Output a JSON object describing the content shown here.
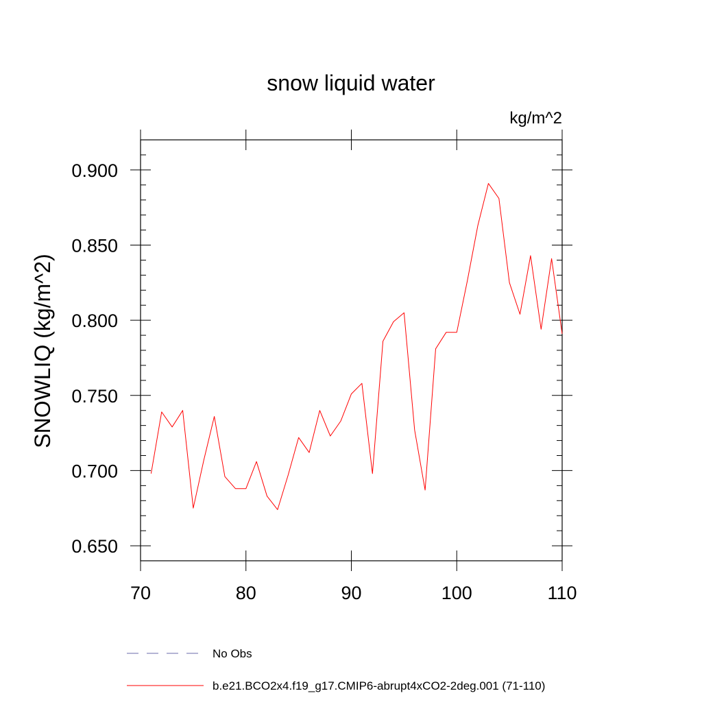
{
  "chart_data": {
    "type": "line",
    "title": "snow liquid water",
    "units_label": "kg/m^2",
    "xlabel": "",
    "ylabel": "SNOWLIQ  (kg/m^2)",
    "xlim": [
      70,
      110
    ],
    "ylim": [
      0.64,
      0.92
    ],
    "x_ticks": [
      70,
      80,
      90,
      100,
      110
    ],
    "x_tick_labels": [
      "70",
      "80",
      "90",
      "100",
      "110"
    ],
    "y_ticks": [
      0.65,
      0.7,
      0.75,
      0.8,
      0.85,
      0.9
    ],
    "y_tick_labels": [
      "0.650",
      "0.700",
      "0.750",
      "0.800",
      "0.850",
      "0.900"
    ],
    "grid": false,
    "series": [
      {
        "name": "b.e21.BCO2x4.f19_g17.CMIP6-abrupt4xCO2-2deg.001 (71-110)",
        "color": "#ff0000",
        "dash": "solid",
        "x": [
          71,
          72,
          73,
          74,
          75,
          76,
          77,
          78,
          79,
          80,
          81,
          82,
          83,
          84,
          85,
          86,
          87,
          88,
          89,
          90,
          91,
          92,
          93,
          94,
          95,
          96,
          97,
          98,
          99,
          100,
          101,
          102,
          103,
          104,
          105,
          106,
          107,
          108,
          109,
          110
        ],
        "values": [
          0.698,
          0.739,
          0.729,
          0.74,
          0.675,
          0.707,
          0.736,
          0.696,
          0.688,
          0.688,
          0.706,
          0.683,
          0.674,
          0.697,
          0.722,
          0.712,
          0.74,
          0.723,
          0.733,
          0.751,
          0.758,
          0.698,
          0.786,
          0.799,
          0.805,
          0.727,
          0.687,
          0.781,
          0.792,
          0.792,
          0.826,
          0.863,
          0.891,
          0.881,
          0.825,
          0.804,
          0.843,
          0.794,
          0.841,
          0.791
        ]
      },
      {
        "name": "No Obs",
        "color": "#6a6aa8",
        "dash": "dashed",
        "x": [],
        "values": []
      }
    ],
    "legend_position": "bottom"
  }
}
